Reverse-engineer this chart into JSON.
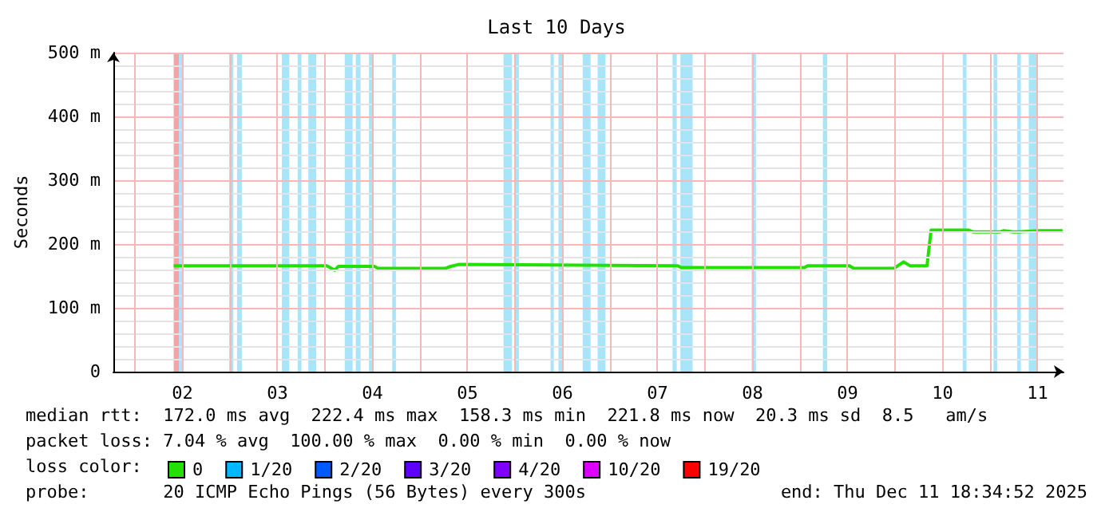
{
  "chart_data": {
    "type": "line",
    "title": "Last 10 Days",
    "ylabel": "Seconds",
    "xlim": [
      "2025-12-01T18:34",
      "2025-12-11T18:34"
    ],
    "xticks": [
      {
        "value": "2025-12-02T00:00",
        "label": null
      },
      {
        "value": "2025-12-02T12:00",
        "label": "02"
      },
      {
        "value": "2025-12-03T00:00",
        "label": null
      },
      {
        "value": "2025-12-03T12:00",
        "label": "03"
      },
      {
        "value": "2025-12-04T00:00",
        "label": null
      },
      {
        "value": "2025-12-04T12:00",
        "label": "04"
      },
      {
        "value": "2025-12-05T00:00",
        "label": null
      },
      {
        "value": "2025-12-05T12:00",
        "label": "05"
      },
      {
        "value": "2025-12-06T00:00",
        "label": null
      },
      {
        "value": "2025-12-06T12:00",
        "label": "06"
      },
      {
        "value": "2025-12-07T00:00",
        "label": null
      },
      {
        "value": "2025-12-07T12:00",
        "label": "07"
      },
      {
        "value": "2025-12-08T00:00",
        "label": null
      },
      {
        "value": "2025-12-08T12:00",
        "label": "08"
      },
      {
        "value": "2025-12-09T00:00",
        "label": null
      },
      {
        "value": "2025-12-09T12:00",
        "label": "09"
      },
      {
        "value": "2025-12-10T00:00",
        "label": null
      },
      {
        "value": "2025-12-10T12:00",
        "label": "10"
      },
      {
        "value": "2025-12-11T00:00",
        "label": null
      },
      {
        "value": "2025-12-11T12:00",
        "label": "11"
      }
    ],
    "ylim": [
      0,
      500
    ],
    "yticks": [
      {
        "value": 0,
        "label": "0"
      },
      {
        "value": 100,
        "label": "100 m"
      },
      {
        "value": 200,
        "label": "200 m"
      },
      {
        "value": 300,
        "label": "300 m"
      },
      {
        "value": 400,
        "label": "400 m"
      },
      {
        "value": 500,
        "label": "500 m"
      }
    ],
    "grid": true,
    "legend": "bottom",
    "legend_title": "loss color:",
    "marker": "none",
    "series": [
      {
        "name": "0",
        "color": "#22e000",
        "x": [
          "2025-12-02T09:48",
          "2025-12-02T23:07",
          "2025-12-04T00:29",
          "2025-12-04T02:28",
          "2025-12-04T03:24",
          "2025-12-04T12:29",
          "2025-12-04T13:24",
          "2025-12-05T06:28",
          "2025-12-05T07:48",
          "2025-12-05T09:48",
          "2025-12-07T17:07",
          "2025-12-07T18:00",
          "2025-12-09T01:07",
          "2025-12-09T02:00",
          "2025-12-09T12:29",
          "2025-12-09T13:30",
          "2025-12-09T23:48",
          "2025-12-10T02:10",
          "2025-12-10T03:48",
          "2025-12-10T08:05",
          "2025-12-10T09:07",
          "2025-12-10T18:29",
          "2025-12-10T19:48",
          "2025-12-11T02:28",
          "2025-12-11T03:31",
          "2025-12-11T05:48",
          "2025-12-11T07:00",
          "2025-12-11T12:29",
          "2025-12-11T18:20"
        ],
        "values": [
          166,
          166,
          166,
          159,
          165,
          165,
          162,
          162,
          165,
          168,
          166,
          163,
          163,
          166,
          166,
          162,
          162,
          172,
          166,
          166,
          222,
          222,
          219,
          219,
          221,
          219,
          219,
          221,
          221
        ]
      },
      {
        "name": "1/20",
        "color": "#00b8ff"
      },
      {
        "name": "2/20",
        "color": "#0059ff"
      },
      {
        "name": "3/20",
        "color": "#5e00ff"
      },
      {
        "name": "4/20",
        "color": "#7e00ff"
      },
      {
        "name": "10/20",
        "color": "#dd00ff"
      },
      {
        "name": "19/20",
        "color": "#ff0000"
      }
    ],
    "bands": [
      {
        "axis": "x",
        "from": "2025-12-02T09:48",
        "to": "2025-12-02T11:07",
        "color": "#f4a4a4"
      },
      {
        "axis": "x",
        "from": "2025-12-02T11:07",
        "to": "2025-12-02T12:04",
        "color": "#a8e4fa"
      },
      {
        "axis": "x",
        "from": "2025-12-02T23:48",
        "to": "2025-12-03T00:52",
        "color": "#a8e4fa"
      },
      {
        "axis": "x",
        "from": "2025-12-03T01:48",
        "to": "2025-12-03T03:00",
        "color": "#a8e4fa"
      },
      {
        "axis": "x",
        "from": "2025-12-03T13:08",
        "to": "2025-12-03T15:00",
        "color": "#a8e4fa"
      },
      {
        "axis": "x",
        "from": "2025-12-03T17:07",
        "to": "2025-12-03T18:04",
        "color": "#a8e4fa"
      },
      {
        "axis": "x",
        "from": "2025-12-03T19:48",
        "to": "2025-12-03T21:48",
        "color": "#a8e4fa"
      },
      {
        "axis": "x",
        "from": "2025-12-04T05:00",
        "to": "2025-12-04T07:00",
        "color": "#a8e4fa"
      },
      {
        "axis": "x",
        "from": "2025-12-04T07:48",
        "to": "2025-12-04T09:00",
        "color": "#a8e4fa"
      },
      {
        "axis": "x",
        "from": "2025-12-04T11:07",
        "to": "2025-12-04T11:56",
        "color": "#a8e4fa"
      },
      {
        "axis": "x",
        "from": "2025-12-04T17:00",
        "to": "2025-12-04T17:56",
        "color": "#a8e4fa"
      },
      {
        "axis": "x",
        "from": "2025-12-05T21:07",
        "to": "2025-12-05T23:15",
        "color": "#a8e4fa"
      },
      {
        "axis": "x",
        "from": "2025-12-06T00:00",
        "to": "2025-12-06T01:00",
        "color": "#a8e4fa"
      },
      {
        "axis": "x",
        "from": "2025-12-06T09:00",
        "to": "2025-12-06T09:48",
        "color": "#a8e4fa"
      },
      {
        "axis": "x",
        "from": "2025-12-06T11:00",
        "to": "2025-12-06T11:56",
        "color": "#a8e4fa"
      },
      {
        "axis": "x",
        "from": "2025-12-06T17:07",
        "to": "2025-12-06T19:07",
        "color": "#a8e4fa"
      },
      {
        "axis": "x",
        "from": "2025-12-06T20:53",
        "to": "2025-12-06T22:52",
        "color": "#a8e4fa"
      },
      {
        "axis": "x",
        "from": "2025-12-07T15:48",
        "to": "2025-12-07T16:52",
        "color": "#a8e4fa"
      },
      {
        "axis": "x",
        "from": "2025-12-07T17:48",
        "to": "2025-12-07T20:53",
        "color": "#a8e4fa"
      },
      {
        "axis": "x",
        "from": "2025-12-08T11:48",
        "to": "2025-12-08T12:53",
        "color": "#a8e4fa"
      },
      {
        "axis": "x",
        "from": "2025-12-09T05:48",
        "to": "2025-12-09T06:53",
        "color": "#a8e4fa"
      },
      {
        "axis": "x",
        "from": "2025-12-10T17:07",
        "to": "2025-12-10T18:04",
        "color": "#a8e4fa"
      },
      {
        "axis": "x",
        "from": "2025-12-11T00:53",
        "to": "2025-12-11T01:48",
        "color": "#a8e4fa"
      },
      {
        "axis": "x",
        "from": "2025-12-11T06:53",
        "to": "2025-12-11T07:48",
        "color": "#a8e4fa"
      },
      {
        "axis": "x",
        "from": "2025-12-11T09:48",
        "to": "2025-12-11T11:48",
        "color": "#a8e4fa"
      }
    ],
    "annotations": [
      "median rtt:  172.0 ms avg  222.4 ms max  158.3 ms min  221.8 ms now  20.3 ms sd  8.5   am/s",
      "packet loss: 7.04 % avg  100.00 % max  0.00 % min  0.00 % now",
      "probe:       20 ICMP Echo Pings (56 Bytes) every 300s",
      "end: Thu Dec 11 18:34:52 2025"
    ]
  }
}
